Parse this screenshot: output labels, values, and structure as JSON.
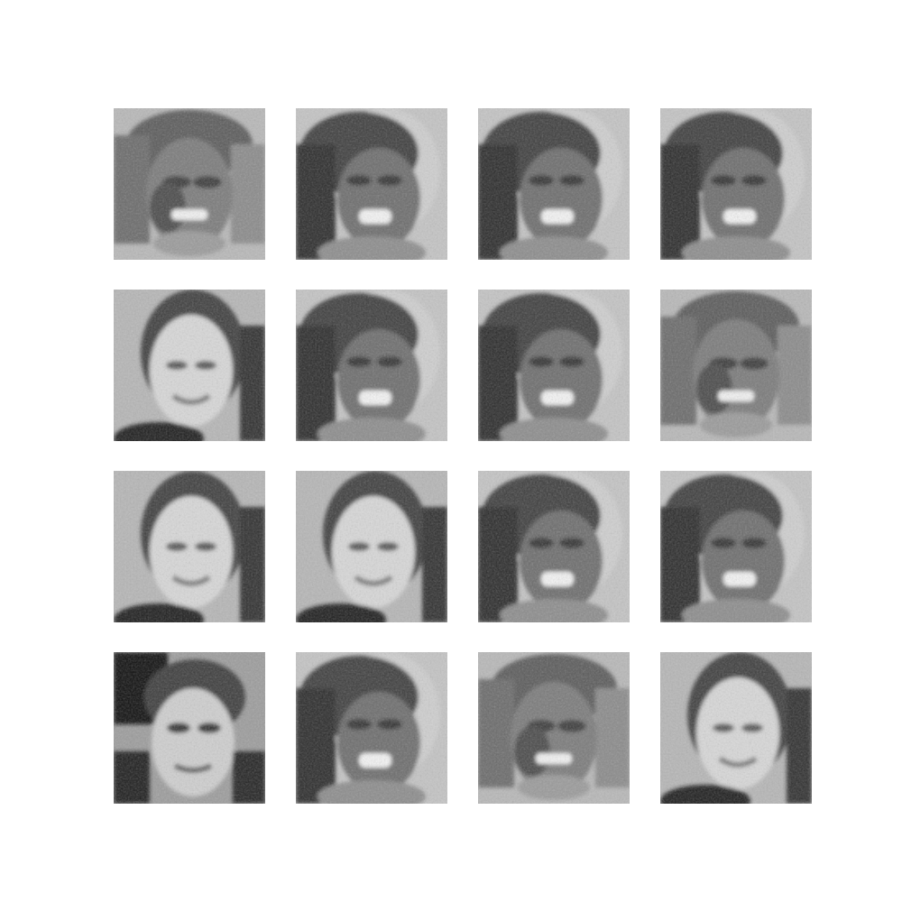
{
  "figure": {
    "rows": 4,
    "cols": 4,
    "background": "#ffffff",
    "colormap": "grayscale",
    "tiles": [
      {
        "variant": "A"
      },
      {
        "variant": "B"
      },
      {
        "variant": "B"
      },
      {
        "variant": "B"
      },
      {
        "variant": "C"
      },
      {
        "variant": "B"
      },
      {
        "variant": "B"
      },
      {
        "variant": "A"
      },
      {
        "variant": "C"
      },
      {
        "variant": "C"
      },
      {
        "variant": "B"
      },
      {
        "variant": "B"
      },
      {
        "variant": "D"
      },
      {
        "variant": "B"
      },
      {
        "variant": "A"
      },
      {
        "variant": "C"
      }
    ]
  }
}
